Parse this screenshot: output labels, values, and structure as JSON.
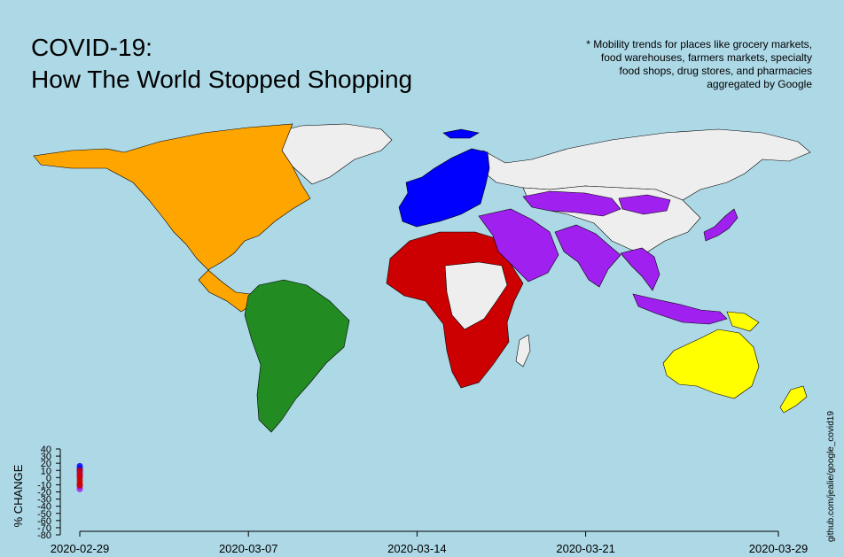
{
  "title": {
    "line1": "COVID-19:",
    "line2": "How The World Stopped Shopping"
  },
  "note_lines": [
    "* Mobility trends for places like grocery markets,",
    "food warehouses, farmers markets, specialty",
    "food shops, drug stores, and pharmacies",
    "aggregated by Google"
  ],
  "credit": "github.com/jealie/google_covid19",
  "map": {
    "ocean_color": "#add8e6",
    "no_data_color": "#eeeeee",
    "regions": [
      {
        "region": "North America",
        "color": "#ffa500"
      },
      {
        "region": "South America",
        "color": "#228b22"
      },
      {
        "region": "Europe",
        "color": "#0000ff"
      },
      {
        "region": "Africa",
        "color": "#cc0000"
      },
      {
        "region": "Asia",
        "color": "#a020f0"
      },
      {
        "region": "Oceania",
        "color": "#ffff00"
      }
    ]
  },
  "chart_data": {
    "type": "scatter",
    "ylabel": "% CHANGE",
    "xlabel": "",
    "xlim": [
      "2020-02-29",
      "2020-03-29"
    ],
    "ylim": [
      -80,
      40
    ],
    "x_ticks": [
      "2020-02-29",
      "2020-03-07",
      "2020-03-14",
      "2020-03-21",
      "2020-03-29"
    ],
    "y_ticks": [
      40,
      30,
      20,
      10,
      0,
      -10,
      -20,
      -30,
      -40,
      -50,
      -60,
      -70,
      -80
    ],
    "grid": false,
    "series": [
      {
        "color": "#0000ff",
        "values": [
          {
            "x": "2020-02-29",
            "y": 16
          },
          {
            "x": "2020-02-29",
            "y": 12
          },
          {
            "x": "2020-02-29",
            "y": 8
          }
        ]
      },
      {
        "color": "#a020f0",
        "values": [
          {
            "x": "2020-02-29",
            "y": -16
          },
          {
            "x": "2020-02-29",
            "y": -12
          },
          {
            "x": "2020-02-29",
            "y": 6
          },
          {
            "x": "2020-02-29",
            "y": 2
          }
        ]
      },
      {
        "color": "#cc0000",
        "values": [
          {
            "x": "2020-02-29",
            "y": 10
          },
          {
            "x": "2020-02-29",
            "y": 4
          },
          {
            "x": "2020-02-29",
            "y": 0
          },
          {
            "x": "2020-02-29",
            "y": -4
          },
          {
            "x": "2020-02-29",
            "y": -8
          },
          {
            "x": "2020-02-29",
            "y": -11
          }
        ]
      }
    ]
  }
}
